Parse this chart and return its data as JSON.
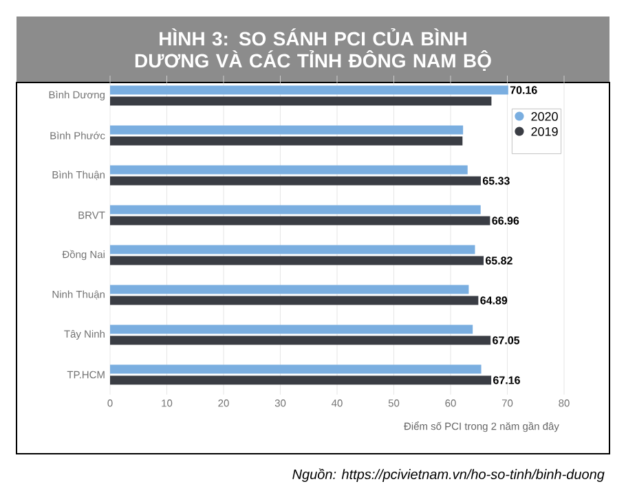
{
  "chart_data": {
    "type": "bar",
    "orientation": "horizontal",
    "title": "HÌNH 3: SO SÁNH PCI CỦA BÌNH DƯƠNG VÀ CÁC TỈNH ĐÔNG NAM BỘ",
    "xlabel": "Điểm số PCI trong 2 năm gần đây",
    "annotations": [
      "Nguồn: https://pcivietnam.vn/ho-so-tinh/binh-duong"
    ],
    "categories": [
      "Bình Dương",
      "Bình Phước",
      "Bình Thuận",
      "BRVT",
      "Đồng Nai",
      "Ninh Thuận",
      "Tây Ninh",
      "TP.HCM"
    ],
    "series": [
      {
        "name": "2020",
        "color": "#7aaee0",
        "values": [
          70.16,
          62.2,
          63.0,
          65.3,
          64.3,
          63.2,
          63.9,
          65.4
        ],
        "value_labels": [
          "70.16",
          null,
          null,
          null,
          null,
          null,
          null,
          null
        ]
      },
      {
        "name": "2019",
        "color": "#3a3d44",
        "values": [
          67.2,
          62.1,
          65.33,
          66.96,
          65.82,
          64.89,
          67.05,
          67.16
        ],
        "value_labels": [
          null,
          null,
          "65.33",
          "66.96",
          "65.82",
          "64.89",
          "67.05",
          "67.16"
        ]
      }
    ],
    "xlim": [
      0,
      80
    ],
    "xticks": [
      0,
      10,
      20,
      30,
      40,
      50,
      60,
      70,
      80
    ],
    "grid": "x",
    "legend": "top right"
  }
}
